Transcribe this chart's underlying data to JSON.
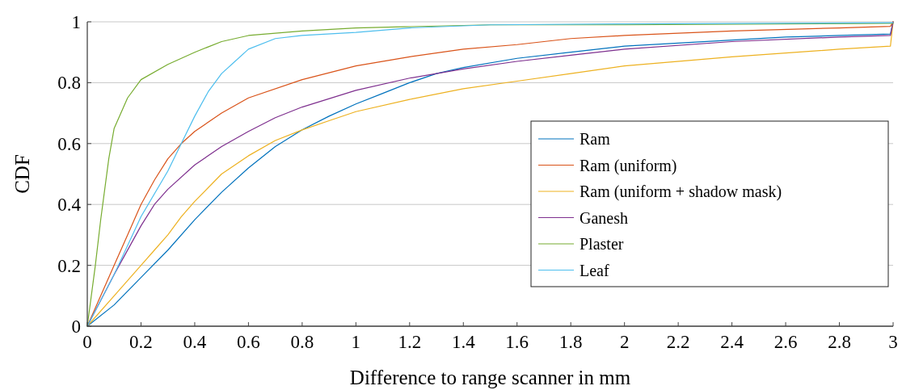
{
  "chart_data": {
    "type": "line",
    "xlabel": "Difference to range scanner in mm",
    "ylabel": "CDF",
    "xlim": [
      0,
      3
    ],
    "ylim": [
      0,
      1
    ],
    "xticks": [
      0,
      0.2,
      0.4,
      0.6,
      0.8,
      1,
      1.2,
      1.4,
      1.6,
      1.8,
      2,
      2.2,
      2.4,
      2.6,
      2.8,
      3
    ],
    "yticks": [
      0,
      0.2,
      0.4,
      0.6,
      0.8,
      1
    ],
    "grid": "y",
    "legend": "right",
    "line_style": "solid",
    "series": [
      {
        "name": "Ram",
        "color": "#0072bd",
        "x": [
          0,
          0.1,
          0.2,
          0.3,
          0.4,
          0.5,
          0.6,
          0.7,
          0.8,
          0.9,
          1,
          1.1,
          1.2,
          1.3,
          1.4,
          1.6,
          1.8,
          2,
          2.2,
          2.4,
          2.6,
          2.8,
          2.99,
          3
        ],
        "values": [
          0,
          0.07,
          0.16,
          0.25,
          0.35,
          0.44,
          0.52,
          0.59,
          0.645,
          0.69,
          0.73,
          0.765,
          0.8,
          0.83,
          0.85,
          0.88,
          0.9,
          0.92,
          0.93,
          0.94,
          0.95,
          0.955,
          0.96,
          1
        ]
      },
      {
        "name": "Ram (uniform)",
        "color": "#d95319",
        "x": [
          0,
          0.1,
          0.15,
          0.2,
          0.25,
          0.3,
          0.35,
          0.4,
          0.5,
          0.6,
          0.8,
          1,
          1.2,
          1.4,
          1.6,
          1.8,
          2,
          2.4,
          2.8,
          2.99,
          3
        ],
        "values": [
          0,
          0.2,
          0.3,
          0.4,
          0.48,
          0.55,
          0.6,
          0.64,
          0.7,
          0.75,
          0.81,
          0.855,
          0.885,
          0.91,
          0.925,
          0.945,
          0.955,
          0.97,
          0.98,
          0.985,
          1
        ]
      },
      {
        "name": "Ram (uniform + shadow mask)",
        "color": "#edb120",
        "x": [
          0,
          0.1,
          0.2,
          0.25,
          0.3,
          0.35,
          0.4,
          0.45,
          0.5,
          0.6,
          0.7,
          0.8,
          0.9,
          1,
          1.2,
          1.4,
          1.6,
          1.8,
          2,
          2.4,
          2.8,
          2.99,
          3
        ],
        "values": [
          0,
          0.1,
          0.2,
          0.25,
          0.3,
          0.36,
          0.41,
          0.455,
          0.5,
          0.56,
          0.61,
          0.645,
          0.675,
          0.705,
          0.745,
          0.78,
          0.805,
          0.83,
          0.855,
          0.885,
          0.91,
          0.92,
          1
        ]
      },
      {
        "name": "Ganesh",
        "color": "#7e2f8e",
        "x": [
          0,
          0.1,
          0.2,
          0.25,
          0.3,
          0.4,
          0.5,
          0.6,
          0.7,
          0.8,
          1,
          1.2,
          1.4,
          1.6,
          1.8,
          2,
          2.4,
          2.8,
          2.99,
          3
        ],
        "values": [
          0,
          0.17,
          0.33,
          0.4,
          0.45,
          0.53,
          0.59,
          0.64,
          0.685,
          0.72,
          0.775,
          0.815,
          0.845,
          0.87,
          0.89,
          0.91,
          0.935,
          0.95,
          0.955,
          1
        ]
      },
      {
        "name": "Plaster",
        "color": "#77ac30",
        "x": [
          0,
          0.03,
          0.05,
          0.08,
          0.1,
          0.15,
          0.2,
          0.3,
          0.4,
          0.5,
          0.6,
          0.8,
          1,
          1.5,
          2,
          3
        ],
        "values": [
          0,
          0.2,
          0.35,
          0.55,
          0.65,
          0.75,
          0.81,
          0.86,
          0.9,
          0.935,
          0.955,
          0.97,
          0.98,
          0.99,
          0.99,
          0.995
        ]
      },
      {
        "name": "Leaf",
        "color": "#4dbeee",
        "x": [
          0,
          0.1,
          0.2,
          0.3,
          0.35,
          0.4,
          0.45,
          0.5,
          0.55,
          0.6,
          0.7,
          0.8,
          1,
          1.2,
          1.5,
          2,
          3
        ],
        "values": [
          0,
          0.17,
          0.36,
          0.51,
          0.6,
          0.69,
          0.77,
          0.83,
          0.87,
          0.91,
          0.945,
          0.955,
          0.965,
          0.98,
          0.99,
          0.993,
          0.997
        ]
      }
    ]
  }
}
